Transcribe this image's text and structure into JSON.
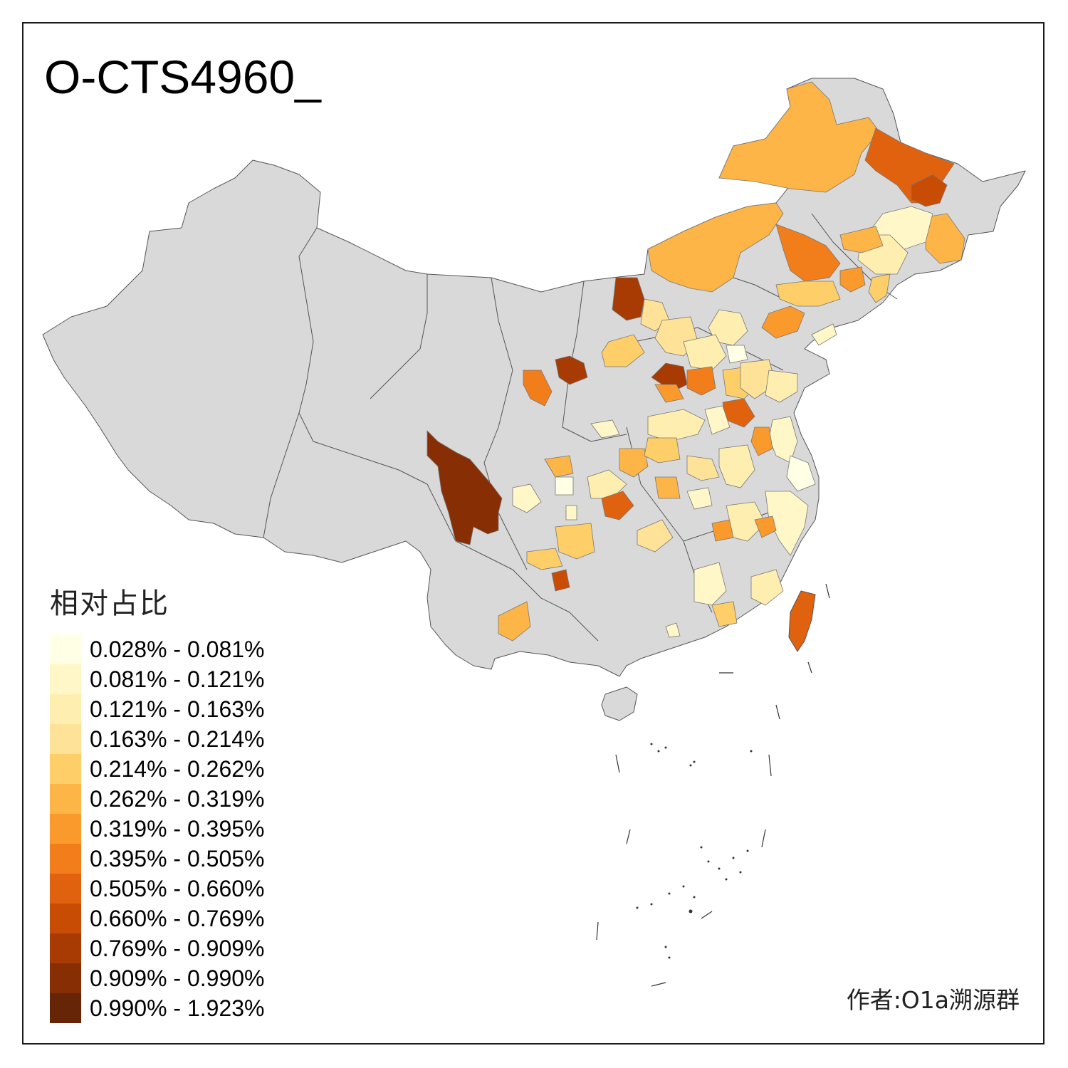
{
  "map": {
    "title": "O-CTS4960_",
    "legend": {
      "title": "相对占比",
      "items": [
        {
          "label": "0.028% - 0.081%",
          "color": "#FFFFE5"
        },
        {
          "label": "0.081% - 0.121%",
          "color": "#FFF7C8"
        },
        {
          "label": "0.121% - 0.163%",
          "color": "#FEEEB0"
        },
        {
          "label": "0.163% - 0.214%",
          "color": "#FEE298"
        },
        {
          "label": "0.214% - 0.262%",
          "color": "#FECF68"
        },
        {
          "label": "0.262% - 0.319%",
          "color": "#FEB547"
        },
        {
          "label": "0.319% - 0.395%",
          "color": "#FB9A2C"
        },
        {
          "label": "0.395% - 0.505%",
          "color": "#F17E1B"
        },
        {
          "label": "0.505% - 0.660%",
          "color": "#E0620E"
        },
        {
          "label": "0.660% - 0.769%",
          "color": "#C94C05"
        },
        {
          "label": "0.769% - 0.909%",
          "color": "#A83A03"
        },
        {
          "label": "0.909% - 0.990%",
          "color": "#872E04"
        },
        {
          "label": "0.990% - 1.923%",
          "color": "#662506"
        }
      ]
    },
    "author": "作者:O1a溯源群",
    "no_data_color": "#D9D9D9",
    "border_color": "#555555"
  }
}
